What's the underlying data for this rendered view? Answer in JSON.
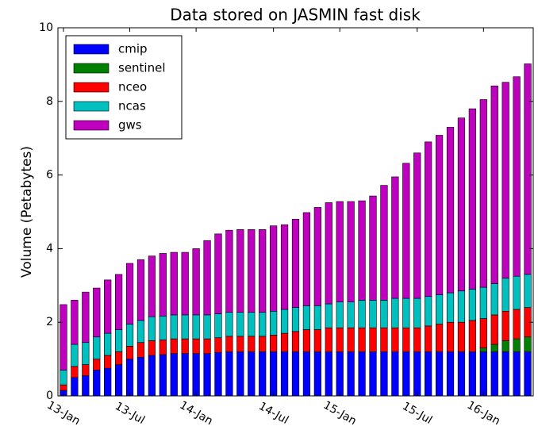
{
  "chart_data": {
    "type": "stacked_bar",
    "title": "Data stored on JASMIN fast disk",
    "ylabel": "Volume (Petabytes)",
    "categories": [
      "13-Jan",
      null,
      null,
      null,
      null,
      null,
      "13-Jul",
      null,
      null,
      null,
      null,
      null,
      "14-Jan",
      null,
      null,
      null,
      null,
      null,
      null,
      "14-Jul",
      null,
      null,
      null,
      null,
      null,
      "15-Jan",
      null,
      null,
      null,
      null,
      null,
      null,
      "15-Jul",
      null,
      null,
      null,
      null,
      null,
      "16-Jan",
      null,
      null,
      null,
      null
    ],
    "series": [
      {
        "name": "cmip",
        "color": "#0000ff",
        "values": [
          0.15,
          0.5,
          0.55,
          0.7,
          0.75,
          0.85,
          1.0,
          1.05,
          1.1,
          1.12,
          1.15,
          1.15,
          1.15,
          1.15,
          1.18,
          1.2,
          1.2,
          1.2,
          1.2,
          1.2,
          1.2,
          1.2,
          1.2,
          1.2,
          1.2,
          1.2,
          1.2,
          1.2,
          1.2,
          1.2,
          1.2,
          1.2,
          1.2,
          1.2,
          1.2,
          1.2,
          1.2,
          1.2,
          1.2,
          1.2,
          1.2,
          1.2,
          1.2
        ]
      },
      {
        "name": "sentinel",
        "color": "#008000",
        "values": [
          0,
          0,
          0,
          0,
          0,
          0,
          0,
          0,
          0,
          0,
          0,
          0,
          0,
          0,
          0,
          0,
          0,
          0,
          0,
          0,
          0,
          0,
          0,
          0,
          0,
          0,
          0,
          0,
          0,
          0,
          0,
          0,
          0,
          0,
          0,
          0,
          0,
          0,
          0.1,
          0.2,
          0.3,
          0.35,
          0.4
        ]
      },
      {
        "name": "nceo",
        "color": "#ff0000",
        "values": [
          0.15,
          0.3,
          0.3,
          0.3,
          0.35,
          0.35,
          0.35,
          0.4,
          0.4,
          0.4,
          0.4,
          0.4,
          0.4,
          0.4,
          0.4,
          0.42,
          0.42,
          0.42,
          0.42,
          0.45,
          0.5,
          0.55,
          0.6,
          0.6,
          0.65,
          0.65,
          0.65,
          0.65,
          0.65,
          0.65,
          0.65,
          0.65,
          0.65,
          0.7,
          0.75,
          0.8,
          0.8,
          0.85,
          0.8,
          0.8,
          0.8,
          0.8,
          0.8
        ]
      },
      {
        "name": "ncas",
        "color": "#00bfbf",
        "values": [
          0.4,
          0.6,
          0.6,
          0.6,
          0.6,
          0.6,
          0.6,
          0.6,
          0.65,
          0.65,
          0.65,
          0.65,
          0.65,
          0.65,
          0.65,
          0.65,
          0.65,
          0.65,
          0.65,
          0.65,
          0.65,
          0.65,
          0.65,
          0.65,
          0.65,
          0.7,
          0.7,
          0.75,
          0.75,
          0.75,
          0.8,
          0.8,
          0.8,
          0.8,
          0.8,
          0.8,
          0.85,
          0.85,
          0.85,
          0.85,
          0.9,
          0.9,
          0.9
        ]
      },
      {
        "name": "gws",
        "color": "#bf00bf",
        "values": [
          1.78,
          1.2,
          1.37,
          1.33,
          1.45,
          1.5,
          1.65,
          1.65,
          1.65,
          1.7,
          1.7,
          1.7,
          1.8,
          2.02,
          2.17,
          2.23,
          2.25,
          2.25,
          2.25,
          2.32,
          2.3,
          2.4,
          2.53,
          2.67,
          2.75,
          2.73,
          2.73,
          2.7,
          2.83,
          3.12,
          3.3,
          3.67,
          3.95,
          4.2,
          4.33,
          4.5,
          4.7,
          4.9,
          5.1,
          5.37,
          5.32,
          5.42,
          5.72
        ]
      }
    ],
    "ylim": [
      0,
      10
    ],
    "yticks": [
      0,
      2,
      4,
      6,
      8,
      10
    ],
    "legend": "upper left"
  }
}
